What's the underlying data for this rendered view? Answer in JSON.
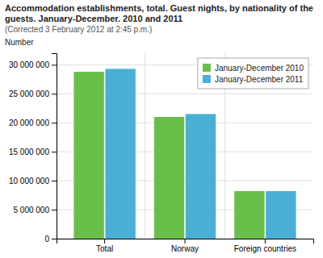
{
  "chart_data": {
    "type": "bar",
    "title": "Accommodation establishments, total. Guest nights, by nationality of the guests. January-December. 2010 and 2011",
    "subtitle": "(Corrected 3 February 2012 at 2:45 p.m.)",
    "ylabel": "Number",
    "categories": [
      "Total",
      "Norway",
      "Foreign countries"
    ],
    "series": [
      {
        "name": "January-December 2010",
        "color": "#6abf4b",
        "values": [
          28800000,
          21000000,
          8200000
        ]
      },
      {
        "name": "January-December 2011",
        "color": "#4bafd4",
        "values": [
          29300000,
          21500000,
          8200000
        ]
      }
    ],
    "ylim": [
      0,
      32000000
    ],
    "yticks": [
      0,
      {
        "value": 5000000,
        "label": "5 000 000"
      },
      {
        "value": 10000000,
        "label": "10 000 000"
      },
      {
        "value": 15000000,
        "label": "15 000 000"
      },
      {
        "value": 20000000,
        "label": "20 000 000"
      },
      {
        "value": 25000000,
        "label": "25 000 000"
      },
      {
        "value": 30000000,
        "label": "30 000 000"
      }
    ],
    "grid": true,
    "legend": "upper right"
  }
}
